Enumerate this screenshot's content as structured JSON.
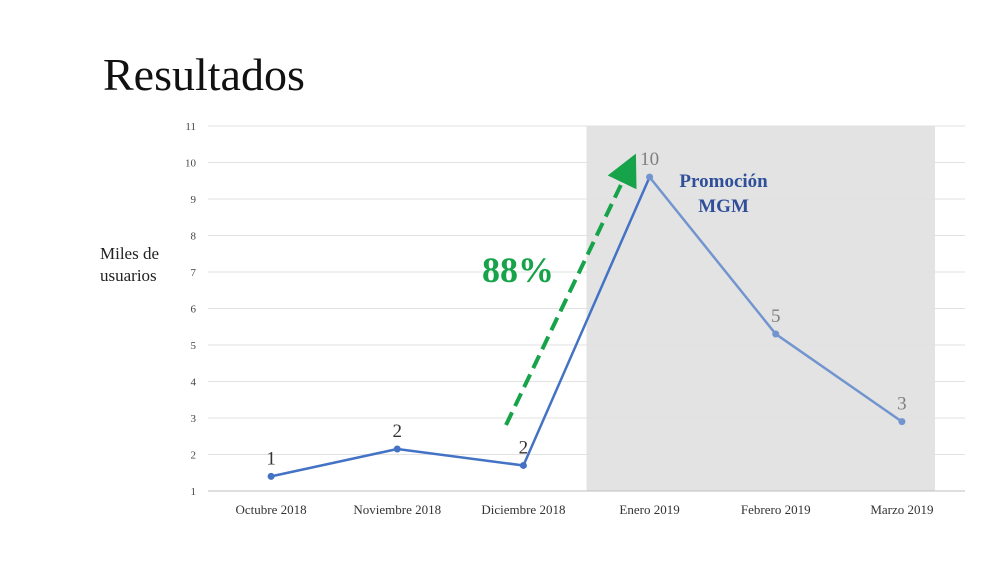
{
  "slide": {
    "title": "Resultados"
  },
  "chart_data": {
    "type": "line",
    "ylabel": "Miles de usuarios",
    "ylim": [
      1,
      11
    ],
    "yticks": [
      1,
      2,
      3,
      4,
      5,
      6,
      7,
      8,
      9,
      10,
      11
    ],
    "grid": true,
    "categories": [
      "Octubre 2018",
      "Noviembre 2018",
      "Diciembre 2018",
      "Enero 2019",
      "Febrero 2019",
      "Marzo 2019"
    ],
    "values": [
      1.4,
      2.15,
      1.7,
      9.6,
      5.3,
      2.9
    ],
    "data_labels": [
      "1",
      "2",
      "2",
      "10",
      "5",
      "3"
    ],
    "highlight": {
      "from_category": "Enero 2019",
      "to_category": "Marzo 2019",
      "color": "#e3e3e3"
    },
    "annotations": {
      "promotion": [
        "Promoción",
        "MGM"
      ],
      "growth": "88%"
    },
    "colors": {
      "line_before": "#4472c4",
      "line_after": "#7295cf",
      "arrow": "#16a34a",
      "promotion_text": "#2f4f99"
    }
  }
}
